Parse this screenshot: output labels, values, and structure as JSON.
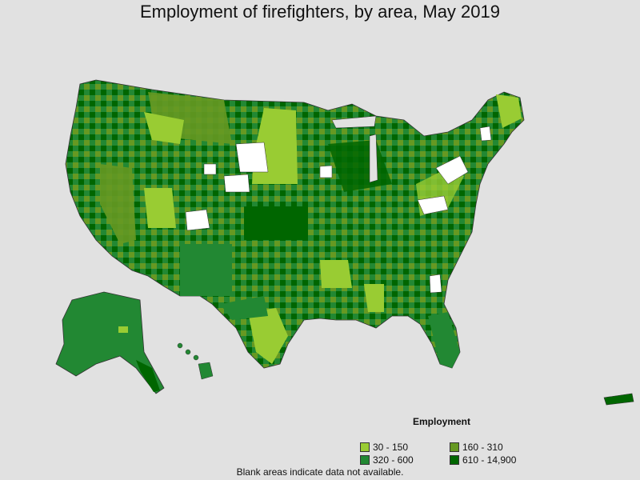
{
  "title": "Employment of firefighters, by area, May 2019",
  "legend": {
    "title": "Employment",
    "items": [
      {
        "label": "30 - 150",
        "color": "#99cc33"
      },
      {
        "label": "160 - 310",
        "color": "#669922"
      },
      {
        "label": "320 - 600",
        "color": "#228833"
      },
      {
        "label": "610 - 14,900",
        "color": "#006600"
      }
    ]
  },
  "footnote": "Blank areas indicate data not available.",
  "colors": {
    "background": "#e1e1e1",
    "no_data": "#ffffff",
    "border": "#333333"
  }
}
